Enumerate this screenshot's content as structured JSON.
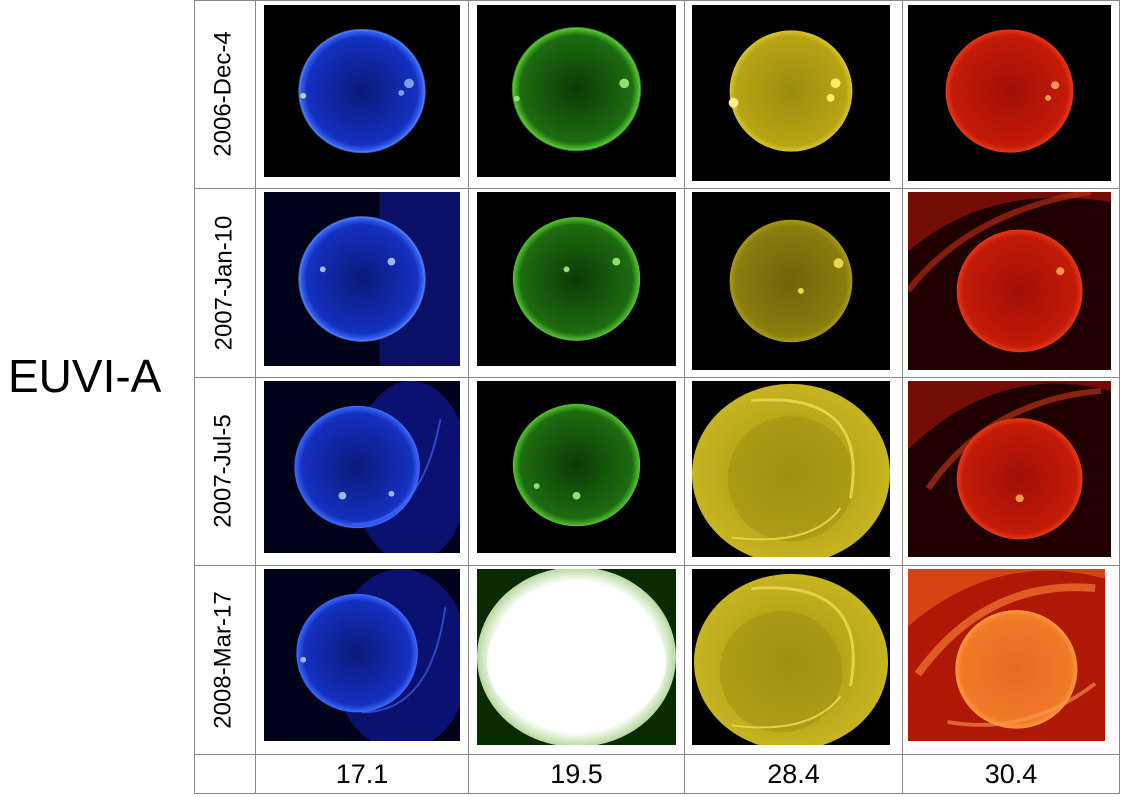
{
  "instrument_label": "EUVI-A",
  "dates": [
    "2006-Dec-4",
    "2007-Jan-10",
    "2007-Jul-5",
    "2008-Mar-17"
  ],
  "wavelengths": [
    "17.1",
    "19.5",
    "28.4",
    "30.4"
  ],
  "colors": {
    "171": "#1f3cf0",
    "195": "#2e9a18",
    "284": "#c8b40a",
    "304": "#d21a0a"
  }
}
